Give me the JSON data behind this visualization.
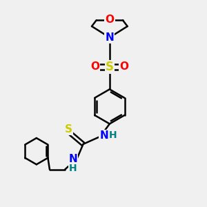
{
  "background_color": "#f0f0f0",
  "bond_color": "#000000",
  "bond_width": 1.8,
  "atom_colors": {
    "O": "#ff0000",
    "N": "#0000ff",
    "S": "#cccc00",
    "H": "#008080",
    "C": "#000000"
  },
  "fig_width": 3.0,
  "fig_height": 3.0,
  "dpi": 100
}
